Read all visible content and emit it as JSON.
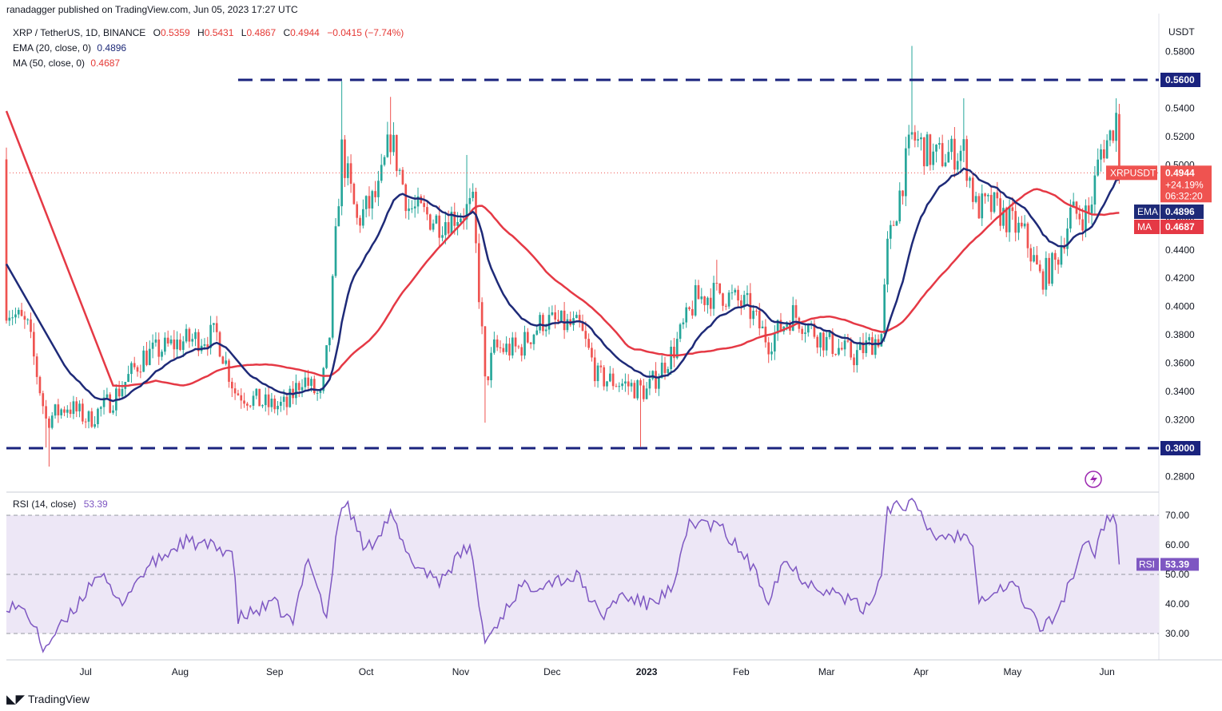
{
  "header": {
    "published": "ranadagger published on TradingView.com, Jun 05, 2023 17:27 UTC"
  },
  "legend": {
    "symbol": "XRP / TetherUS, 1D, BINANCE",
    "o_label": "O",
    "o_value": "0.5359",
    "h_label": "H",
    "h_value": "0.5431",
    "l_label": "L",
    "l_value": "0.4867",
    "c_label": "C",
    "c_value": "0.4944",
    "change": "−0.0415 (−7.74%)",
    "ema_label": "EMA (20, close, 0)",
    "ema_value": "0.4896",
    "ma_label": "MA (50, close, 0)",
    "ma_value": "0.4687",
    "rsi_label": "RSI (14, close)",
    "rsi_value": "53.39"
  },
  "footer": {
    "brand": "TradingView"
  },
  "colors": {
    "up": "#26a69a",
    "down": "#ef5350",
    "ema": "#1e2a78",
    "ma": "#e53945",
    "rsi": "#7e57c2",
    "rsi_band": "#ede7f6",
    "level": "#1a237e"
  },
  "chart_data": [
    {
      "type": "candlestick",
      "title": "XRP / TetherUS, 1D, BINANCE",
      "currency": "USDT",
      "ylim": [
        0.27,
        0.59
      ],
      "y_ticks": [
        "0.2800",
        "0.3000",
        "0.3200",
        "0.3400",
        "0.3600",
        "0.3800",
        "0.4000",
        "0.4200",
        "0.4400",
        "0.4600",
        "0.4800",
        "0.5000",
        "0.5200",
        "0.5400",
        "0.5600",
        "0.5800"
      ],
      "x_ticks": [
        "Jul",
        "Aug",
        "Sep",
        "Oct",
        "Nov",
        "Dec",
        "2023",
        "Feb",
        "Mar",
        "Apr",
        "May",
        "Jun"
      ],
      "x_range": [
        "2022-06-05",
        "2023-06-18"
      ],
      "levels": [
        {
          "label": "0.5600",
          "value": 0.56,
          "from": "2022-08-20"
        },
        {
          "label": "0.3000",
          "value": 0.3,
          "from": "2022-06-05"
        }
      ],
      "last": {
        "label": "XRPUSDT",
        "price": "0.4944",
        "change": "+24.19%",
        "countdown": "06:32:20",
        "value": 0.4944
      },
      "ema_tag": {
        "label": "EMA",
        "price": "0.4896",
        "value": 0.4896
      },
      "ma_tag": {
        "label": "MA",
        "price": "0.4687",
        "value": 0.4687
      },
      "close_anchors": [
        [
          "2022-06-05",
          0.4
        ],
        [
          "2022-06-12",
          0.385
        ],
        [
          "2022-06-18",
          0.32
        ],
        [
          "2022-06-25",
          0.33
        ],
        [
          "2022-07-02",
          0.32
        ],
        [
          "2022-07-10",
          0.335
        ],
        [
          "2022-07-20",
          0.365
        ],
        [
          "2022-08-01",
          0.375
        ],
        [
          "2022-08-13",
          0.38
        ],
        [
          "2022-08-19",
          0.34
        ],
        [
          "2022-08-30",
          0.33
        ],
        [
          "2022-09-05",
          0.33
        ],
        [
          "2022-09-10",
          0.35
        ],
        [
          "2022-09-16",
          0.335
        ],
        [
          "2022-09-19",
          0.38
        ],
        [
          "2022-09-22",
          0.48
        ],
        [
          "2022-09-23",
          0.51
        ],
        [
          "2022-09-28",
          0.46
        ],
        [
          "2022-10-05",
          0.48
        ],
        [
          "2022-10-09",
          0.52
        ],
        [
          "2022-10-15",
          0.47
        ],
        [
          "2022-10-25",
          0.46
        ],
        [
          "2022-11-05",
          0.47
        ],
        [
          "2022-11-08",
          0.38
        ],
        [
          "2022-11-09",
          0.345
        ],
        [
          "2022-11-12",
          0.37
        ],
        [
          "2022-11-20",
          0.37
        ],
        [
          "2022-11-28",
          0.39
        ],
        [
          "2022-12-10",
          0.385
        ],
        [
          "2022-12-16",
          0.35
        ],
        [
          "2022-12-25",
          0.345
        ],
        [
          "2023-01-01",
          0.34
        ],
        [
          "2023-01-10",
          0.37
        ],
        [
          "2023-01-17",
          0.405
        ],
        [
          "2023-01-25",
          0.41
        ],
        [
          "2023-02-03",
          0.4
        ],
        [
          "2023-02-10",
          0.375
        ],
        [
          "2023-02-18",
          0.395
        ],
        [
          "2023-03-01",
          0.375
        ],
        [
          "2023-03-10",
          0.365
        ],
        [
          "2023-03-19",
          0.38
        ],
        [
          "2023-03-21",
          0.44
        ],
        [
          "2023-03-29",
          0.52
        ],
        [
          "2023-04-05",
          0.505
        ],
        [
          "2023-04-15",
          0.51
        ],
        [
          "2023-04-19",
          0.47
        ],
        [
          "2023-04-25",
          0.47
        ],
        [
          "2023-05-05",
          0.45
        ],
        [
          "2023-05-10",
          0.42
        ],
        [
          "2023-05-15",
          0.43
        ],
        [
          "2023-05-20",
          0.465
        ],
        [
          "2023-05-26",
          0.465
        ],
        [
          "2023-05-30",
          0.51
        ],
        [
          "2023-06-02",
          0.52
        ],
        [
          "2023-06-04",
          0.535
        ],
        [
          "2023-06-05",
          0.494
        ]
      ],
      "wick_extremes": [
        {
          "date": "2022-06-18",
          "value": 0.3005
        },
        {
          "date": "2022-06-19",
          "value": 0.287
        },
        {
          "date": "2022-09-23",
          "value": 0.559
        },
        {
          "date": "2022-10-09",
          "value": 0.548
        },
        {
          "date": "2022-11-03",
          "value": 0.507
        },
        {
          "date": "2022-11-09",
          "value": 0.318
        },
        {
          "date": "2022-12-30",
          "value": 0.301
        },
        {
          "date": "2023-01-24",
          "value": 0.433
        },
        {
          "date": "2023-03-29",
          "value": 0.584
        },
        {
          "date": "2023-04-15",
          "value": 0.547
        },
        {
          "date": "2023-05-11",
          "value": 0.412
        },
        {
          "date": "2023-06-04",
          "value": 0.547
        }
      ]
    },
    {
      "type": "line",
      "title": "RSI (14, close)",
      "ylim": [
        20,
        78
      ],
      "y_ticks": [
        "30.00",
        "40.00",
        "50.00",
        "60.00",
        "70.00"
      ],
      "band": [
        30,
        70
      ],
      "midline": 50,
      "last": {
        "label": "RSI",
        "value": 53.39,
        "text": "53.39"
      },
      "anchors": [
        [
          "2022-06-05",
          40
        ],
        [
          "2022-06-12",
          37
        ],
        [
          "2022-06-17",
          25
        ],
        [
          "2022-06-26",
          36
        ],
        [
          "2022-07-05",
          51
        ],
        [
          "2022-07-12",
          40
        ],
        [
          "2022-07-21",
          52
        ],
        [
          "2022-08-02",
          61
        ],
        [
          "2022-08-08",
          60
        ],
        [
          "2022-08-18",
          58
        ],
        [
          "2022-08-20",
          35
        ],
        [
          "2022-09-01",
          40
        ],
        [
          "2022-09-07",
          33
        ],
        [
          "2022-09-12",
          57
        ],
        [
          "2022-09-18",
          35
        ],
        [
          "2022-09-22",
          69
        ],
        [
          "2022-09-24",
          75
        ],
        [
          "2022-10-01",
          58
        ],
        [
          "2022-10-09",
          70
        ],
        [
          "2022-10-15",
          55
        ],
        [
          "2022-10-25",
          48
        ],
        [
          "2022-11-04",
          60
        ],
        [
          "2022-11-09",
          27
        ],
        [
          "2022-11-20",
          45
        ],
        [
          "2022-12-01",
          48
        ],
        [
          "2022-12-10",
          49
        ],
        [
          "2022-12-17",
          35
        ],
        [
          "2022-12-23",
          43
        ],
        [
          "2023-01-01",
          40
        ],
        [
          "2023-01-10",
          45
        ],
        [
          "2023-01-15",
          68
        ],
        [
          "2023-01-25",
          66
        ],
        [
          "2023-02-03",
          55
        ],
        [
          "2023-02-10",
          42
        ],
        [
          "2023-02-15",
          55
        ],
        [
          "2023-02-22",
          48
        ],
        [
          "2023-03-05",
          43
        ],
        [
          "2023-03-14",
          38
        ],
        [
          "2023-03-19",
          50
        ],
        [
          "2023-03-21",
          73
        ],
        [
          "2023-03-29",
          74
        ],
        [
          "2023-04-05",
          63
        ],
        [
          "2023-04-15",
          63
        ],
        [
          "2023-04-18",
          62
        ],
        [
          "2023-04-20",
          42
        ],
        [
          "2023-05-01",
          47
        ],
        [
          "2023-05-11",
          31
        ],
        [
          "2023-05-16",
          38
        ],
        [
          "2023-05-25",
          60
        ],
        [
          "2023-05-28",
          58
        ],
        [
          "2023-06-01",
          70
        ],
        [
          "2023-06-04",
          69
        ],
        [
          "2023-06-05",
          53.39
        ]
      ]
    }
  ]
}
